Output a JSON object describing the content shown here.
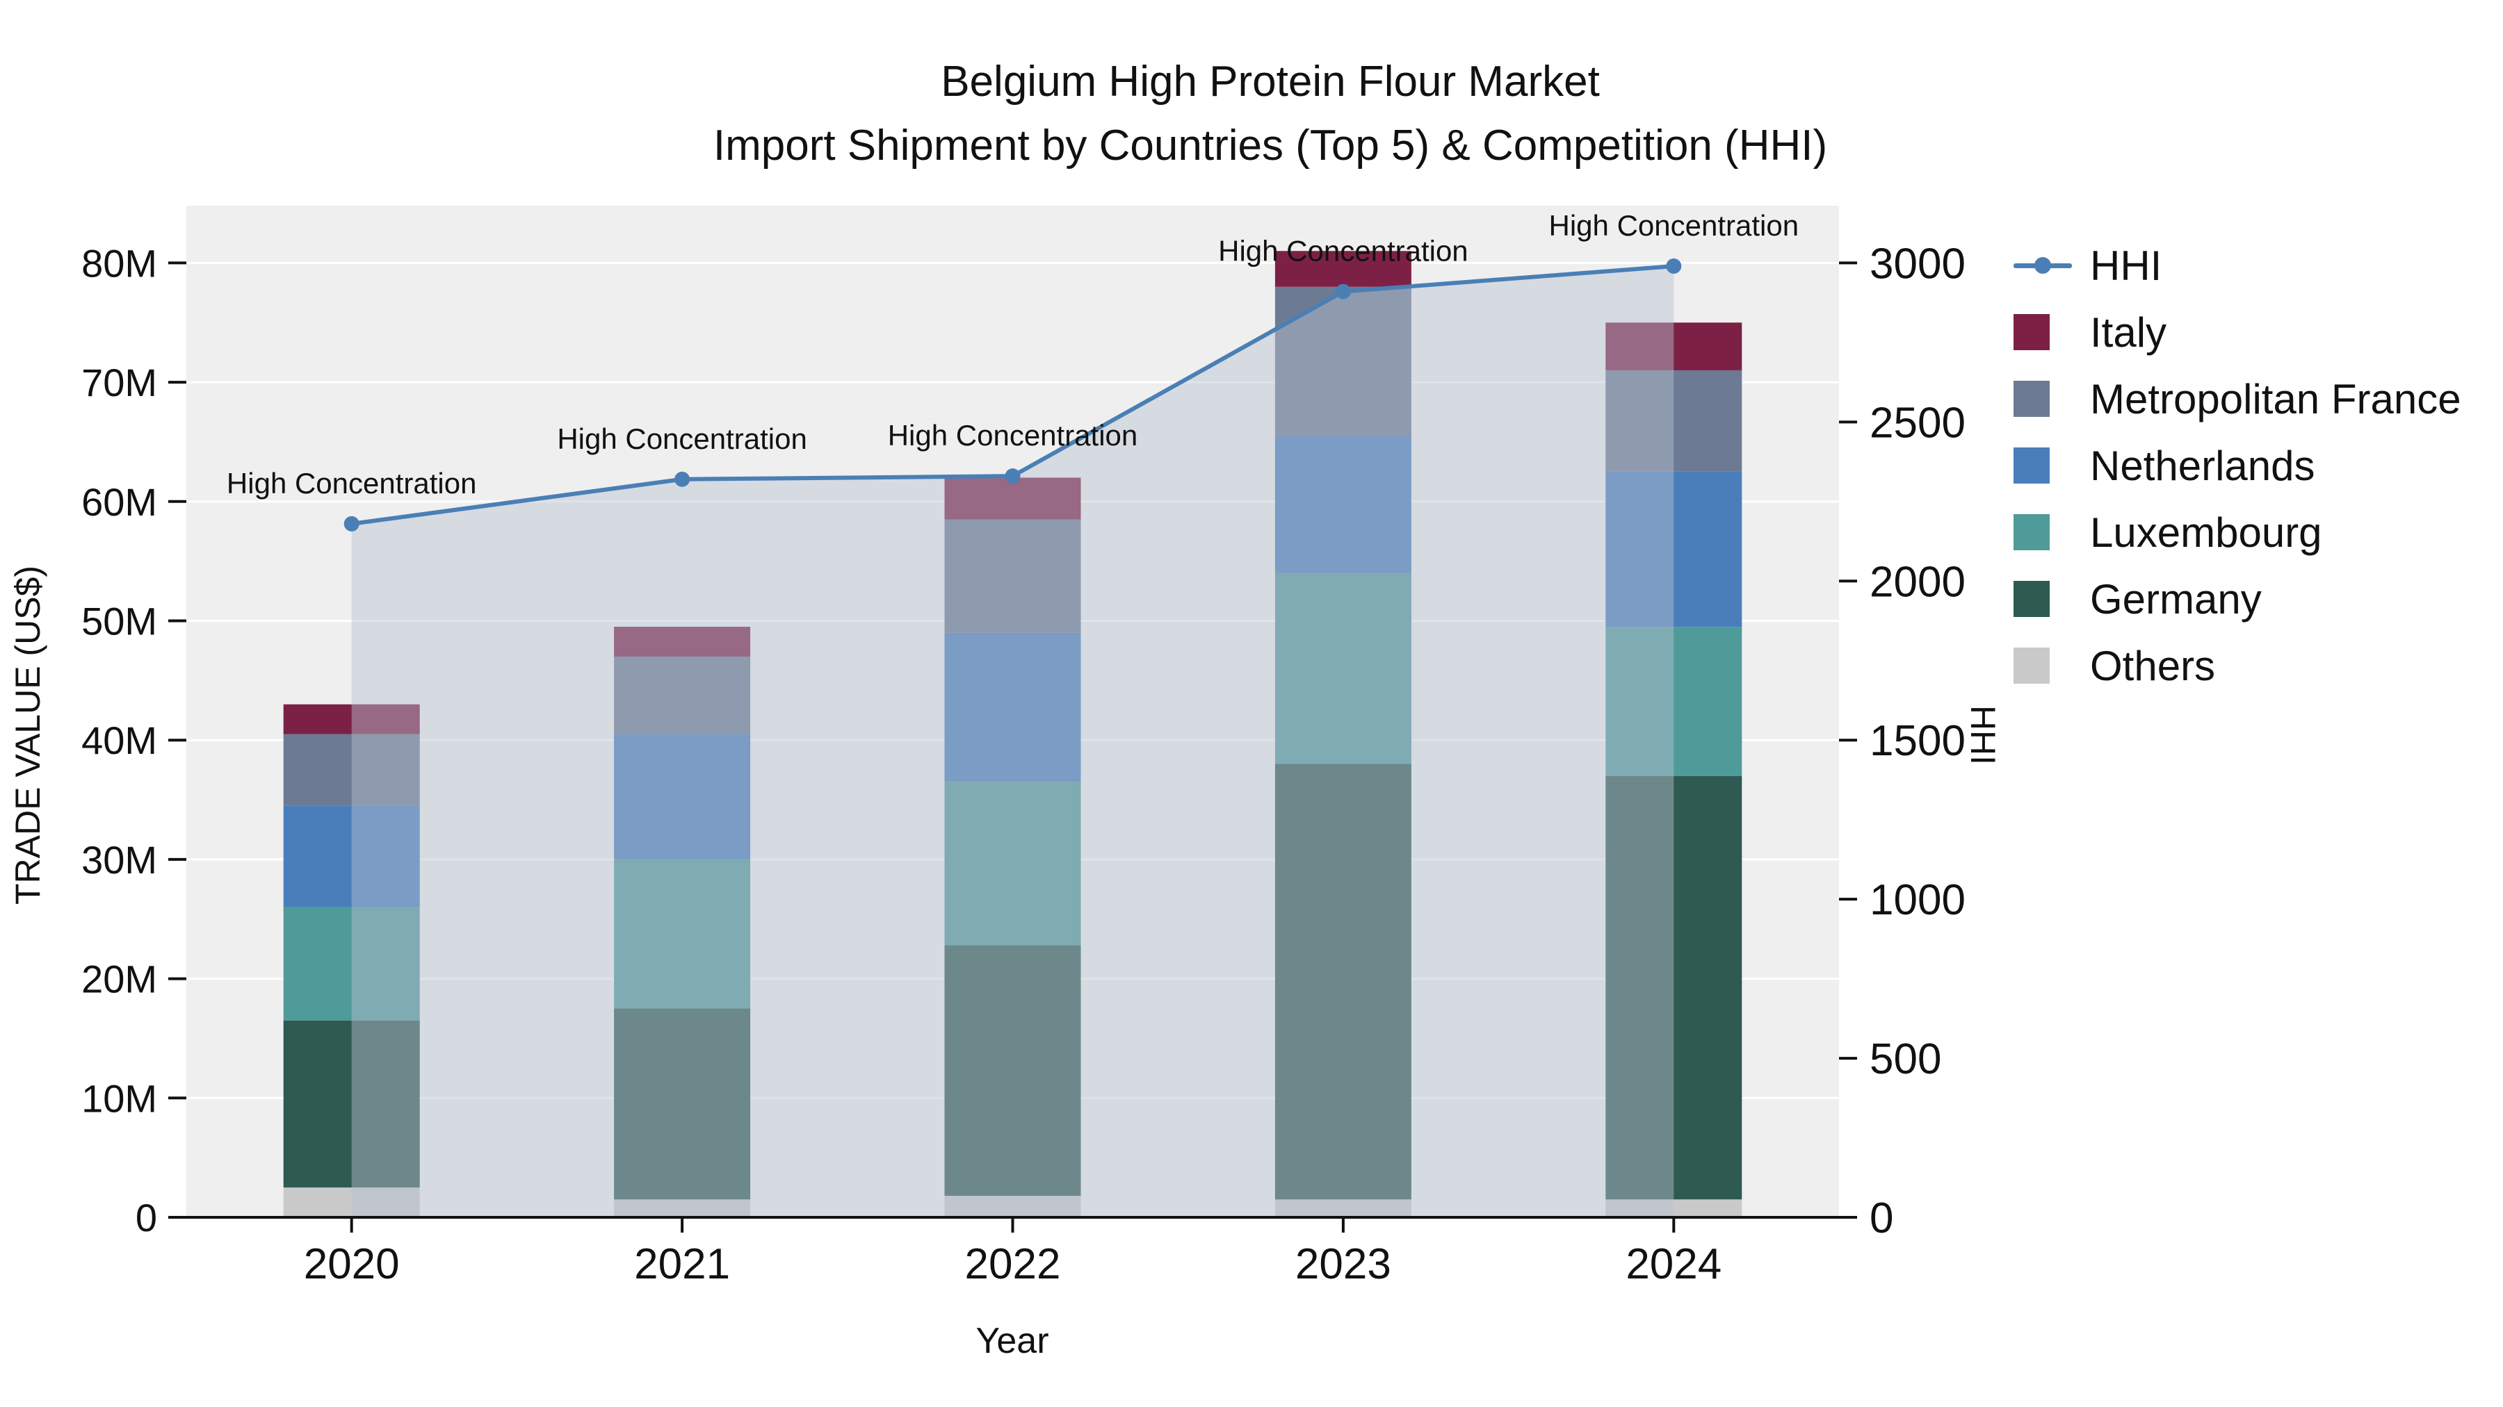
{
  "title": {
    "line1": "Belgium High Protein Flour Market",
    "line2": "Import Shipment by Countries (Top 5) & Competition (HHI)"
  },
  "axes": {
    "y_left_label": "TRADE VALUE (US$)",
    "y_right_label": "HHI",
    "x_label": "Year"
  },
  "chart_data": {
    "type": "bar",
    "subtype": "stacked-bars-with-line-area",
    "title": "Belgium High Protein Flour Market\nImport Shipment by Countries (Top 5) & Competition (HHI)",
    "xlabel": "Year",
    "ylabel_left": "TRADE VALUE (US$)",
    "ylabel_right": "HHI",
    "values_unit": "million US$",
    "categories": [
      "2020",
      "2021",
      "2022",
      "2023",
      "2024"
    ],
    "series": [
      {
        "name": "Others",
        "color": "#c9c9c9",
        "values": [
          2.5,
          1.5,
          1.8,
          1.5,
          1.5
        ]
      },
      {
        "name": "Germany",
        "color": "#2e5a52",
        "values": [
          14.0,
          16.0,
          21.0,
          36.5,
          35.5
        ]
      },
      {
        "name": "Luxembourg",
        "color": "#4f9b99",
        "values": [
          9.5,
          12.5,
          13.7,
          16.0,
          12.5
        ]
      },
      {
        "name": "Netherlands",
        "color": "#4a7ebb",
        "values": [
          8.5,
          10.5,
          12.5,
          11.5,
          13.0
        ]
      },
      {
        "name": "Metropolitan France",
        "color": "#6c7b93",
        "values": [
          6.0,
          6.5,
          9.5,
          12.5,
          8.5
        ]
      },
      {
        "name": "Italy",
        "color": "#7c2145",
        "values": [
          2.5,
          2.5,
          3.5,
          3.0,
          4.0
        ]
      }
    ],
    "bar_totals": [
      43.0,
      49.5,
      62.0,
      81.0,
      75.0
    ],
    "line": {
      "name": "HHI",
      "color": "#4a7fb5",
      "area_fill": "rgba(183,193,209,0.45)",
      "values": [
        2180,
        2320,
        2330,
        2910,
        2990
      ]
    },
    "annotations": [
      "High Concentration",
      "High Concentration",
      "High Concentration",
      "High Concentration",
      "High Concentration"
    ],
    "y_left": {
      "ticks": [
        "0",
        "10M",
        "20M",
        "30M",
        "40M",
        "50M",
        "60M",
        "70M",
        "80M"
      ],
      "tick_values": [
        0,
        10,
        20,
        30,
        40,
        50,
        60,
        70,
        80
      ],
      "max": 84.8
    },
    "y_right": {
      "ticks": [
        "0",
        "500",
        "1000",
        "1500",
        "2000",
        "2500",
        "3000"
      ],
      "tick_values": [
        0,
        500,
        1000,
        1500,
        2000,
        2500,
        3000
      ],
      "max": 3180
    },
    "ylim_left": [
      0,
      84.8
    ],
    "ylim_right": [
      0,
      3180
    ],
    "grid": "horizontal-white-on-lightgray",
    "plot_background": "#efefef",
    "legend_position": "right-top-outside",
    "legend": [
      {
        "label": "HHI",
        "type": "line",
        "color": "#4a7fb5"
      },
      {
        "label": "Italy",
        "type": "square",
        "color": "#7c2145"
      },
      {
        "label": "Metropolitan France",
        "type": "square",
        "color": "#6c7b93"
      },
      {
        "label": "Netherlands",
        "type": "square",
        "color": "#4a7ebb"
      },
      {
        "label": "Luxembourg",
        "type": "square",
        "color": "#4f9b99"
      },
      {
        "label": "Germany",
        "type": "square",
        "color": "#2e5a52"
      },
      {
        "label": "Others",
        "type": "square",
        "color": "#c9c9c9"
      }
    ]
  }
}
